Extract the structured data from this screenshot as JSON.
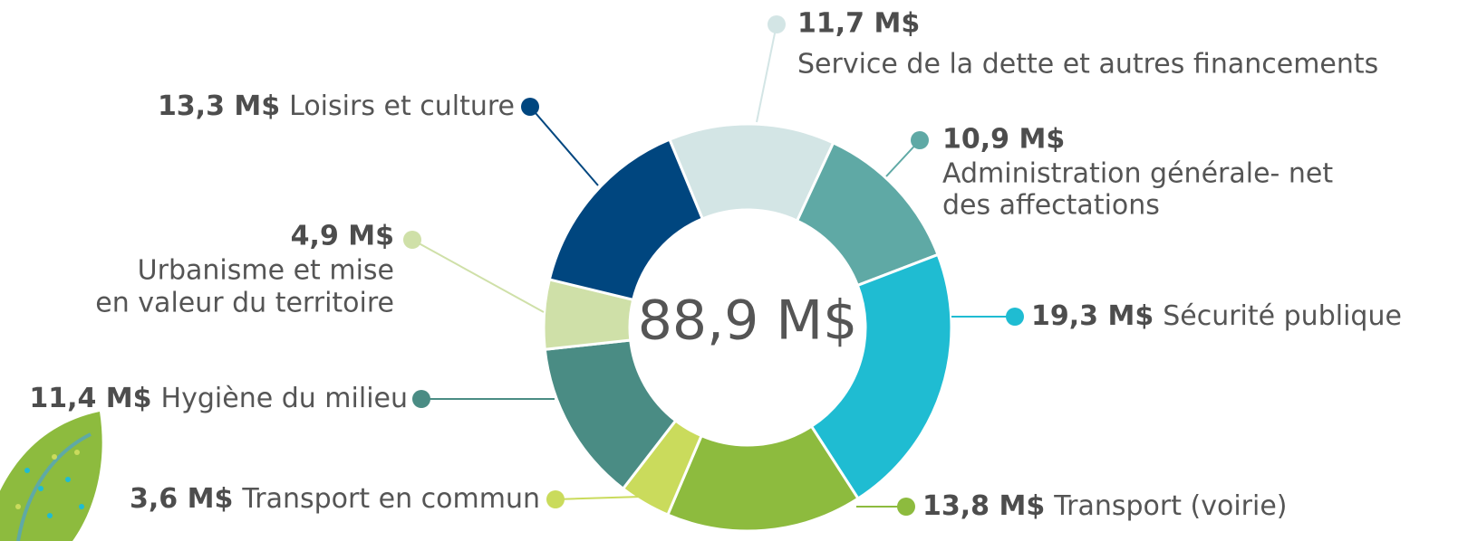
{
  "chart_data": {
    "type": "donut",
    "center_label": "88,9 M$",
    "categories": [
      [
        "Service de la dette et autres financements"
      ],
      [
        "Administration générale- net",
        "des affectations"
      ],
      [
        "Sécurité publique"
      ],
      [
        "Transport (voirie)"
      ],
      [
        "Transport en commun"
      ],
      [
        "Hygiène du milieu"
      ],
      [
        "Urbanisme et mise",
        "en valeur du territoire"
      ],
      [
        "Loisirs et culture"
      ]
    ],
    "values": [
      11.7,
      10.9,
      19.3,
      13.8,
      3.6,
      11.4,
      4.9,
      13.3
    ],
    "value_labels": [
      "11,7 M$",
      "10,9 M$",
      "19,3 M$",
      "13,8 M$",
      "3,6 M$",
      "11,4 M$",
      "4,9 M$",
      "13,3 M$"
    ],
    "colors": [
      "#d3e5e5",
      "#5fa9a5",
      "#1fbcd2",
      "#8dbb3e",
      "#cadb5c",
      "#4a8c84",
      "#cfe0a8",
      "#00467f"
    ]
  }
}
